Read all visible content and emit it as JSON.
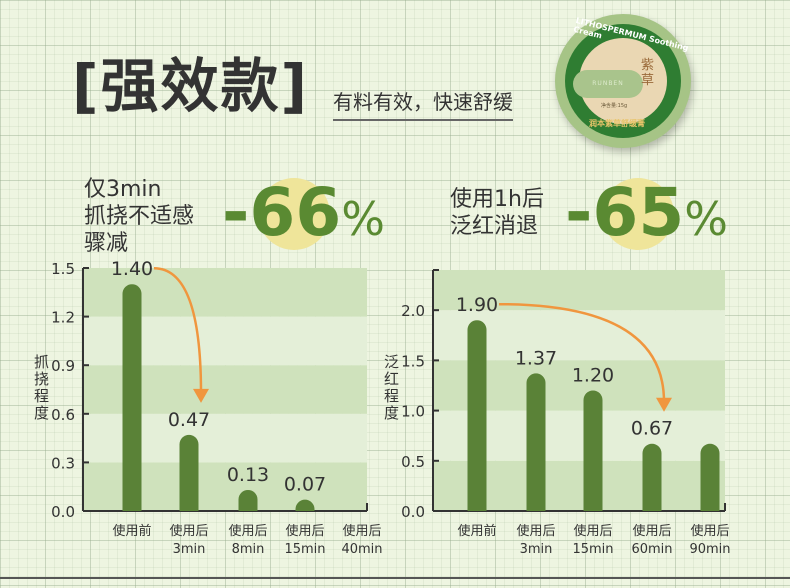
{
  "header": {
    "title": "[强效款]",
    "subtitle": "有料有效，快速舒缓"
  },
  "product": {
    "brand": "LITHOSPERMUM Soothing Cream",
    "name_cn": "紫草",
    "logo": "RUNBEN",
    "product_name": "润本紫草舒缓膏",
    "net_content": "净含量:15g"
  },
  "stats": [
    {
      "lines": [
        "仅3min",
        "抓挠不适感",
        "骤减"
      ],
      "value": "-66",
      "unit": "%"
    },
    {
      "lines": [
        "使用1h后",
        "泛红消退"
      ],
      "value": "-65",
      "unit": "%"
    }
  ],
  "colors": {
    "bar": "#5a8237",
    "arrow": "#f0963e",
    "band_dark": "#cfe2bc",
    "band_light": "#e4efd8",
    "accent": "#5a8a32"
  },
  "chart_data": [
    {
      "type": "bar",
      "ylabel": "抓挠程度",
      "ylim": [
        0,
        1.5
      ],
      "yticks": [
        "0.0",
        "0.3",
        "0.6",
        "0.9",
        "1.2",
        "1.5"
      ],
      "categories": [
        [
          "使用前",
          ""
        ],
        [
          "使用后",
          "3min"
        ],
        [
          "使用后",
          "8min"
        ],
        [
          "使用后",
          "15min"
        ],
        [
          "使用后",
          "40min"
        ]
      ],
      "values": [
        1.4,
        0.47,
        0.13,
        0.07,
        0
      ],
      "data_labels": [
        "1.40",
        "0.47",
        "0.13",
        "0.07",
        ""
      ],
      "arrow": {
        "from": 0,
        "to": 1
      }
    },
    {
      "type": "bar",
      "ylabel": "泛红程度",
      "ylim": [
        0,
        2.4
      ],
      "yticks": [
        "0.0",
        "0.5",
        "1.0",
        "1.5",
        "2.0"
      ],
      "categories": [
        [
          "使用前",
          ""
        ],
        [
          "使用后",
          "3min"
        ],
        [
          "使用后",
          "15min"
        ],
        [
          "使用后",
          "60min"
        ],
        [
          "使用后",
          "90min"
        ]
      ],
      "values": [
        1.9,
        1.37,
        1.2,
        0.67,
        0.67
      ],
      "data_labels": [
        "1.90",
        "1.37",
        "1.20",
        "0.67",
        ""
      ],
      "arrow": {
        "from": 0,
        "to": 3
      }
    }
  ]
}
